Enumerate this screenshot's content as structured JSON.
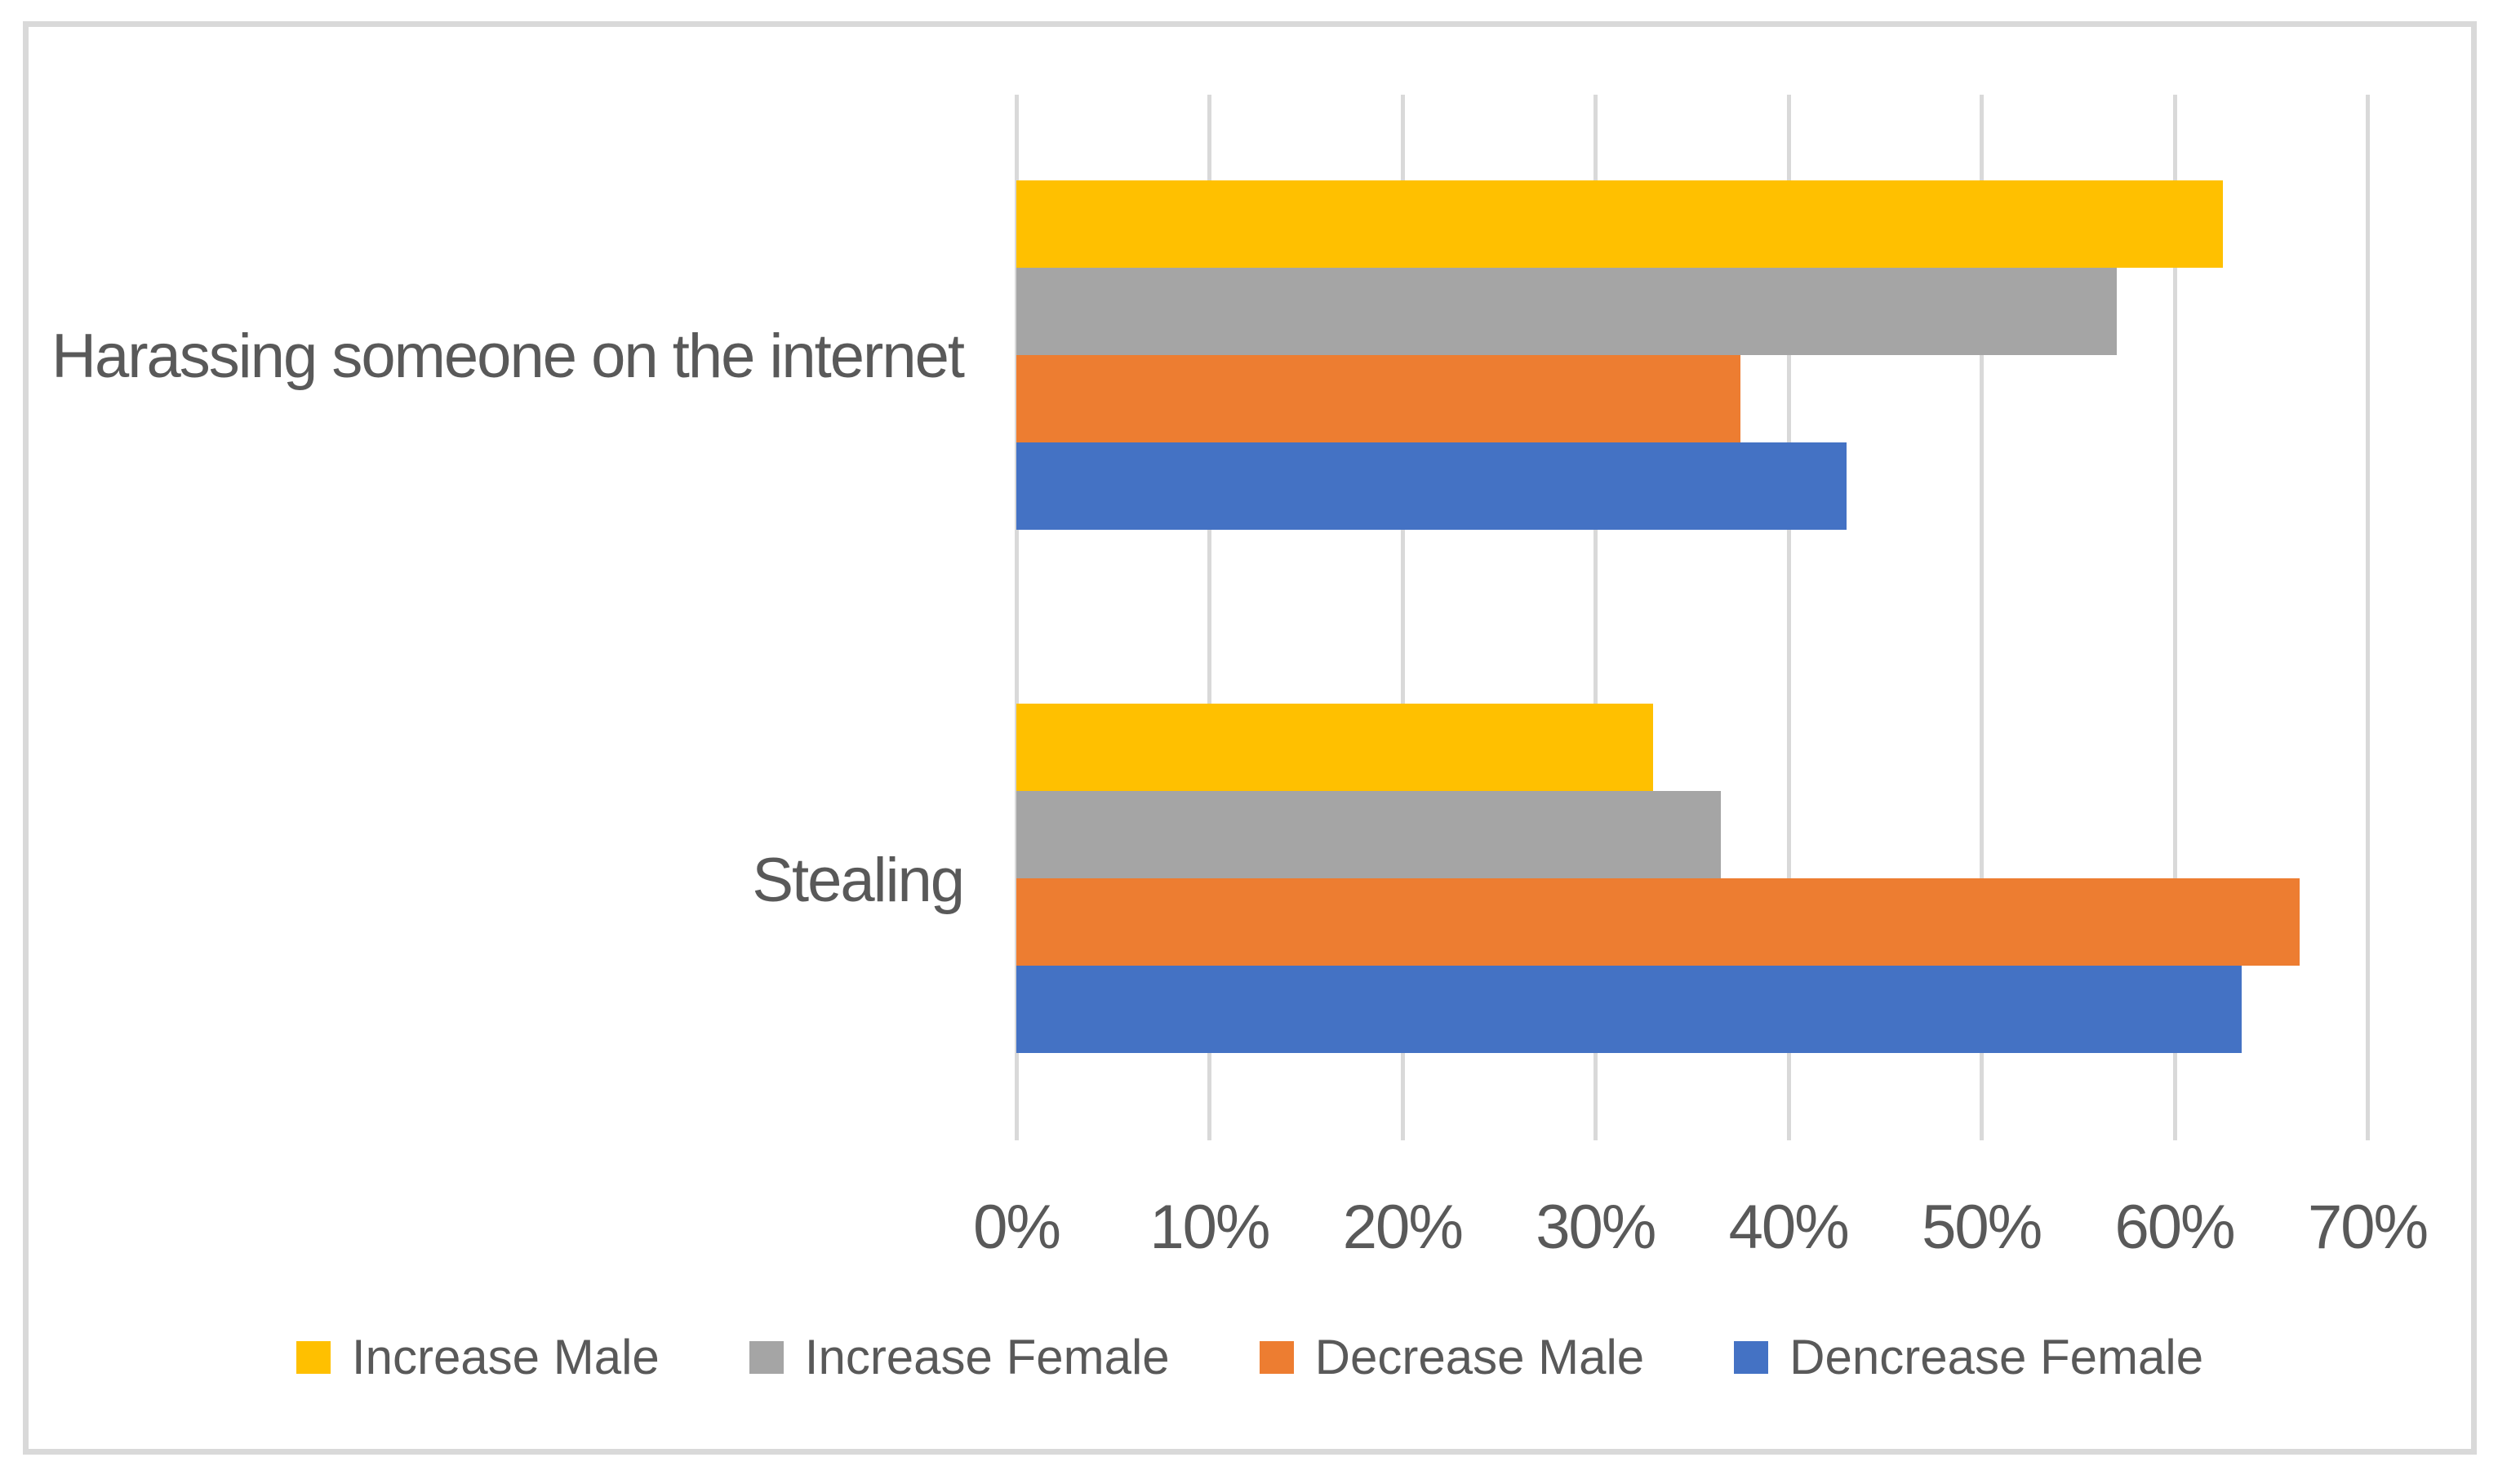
{
  "chart_data": {
    "type": "bar",
    "orientation": "horizontal",
    "title": "",
    "categories": [
      "Harassing someone on the internet",
      "Stealing"
    ],
    "series": [
      {
        "name": "Increase Male",
        "color": "#FFC000",
        "values": [
          62.5,
          33.0
        ]
      },
      {
        "name": "Increase Female",
        "color": "#A5A5A5",
        "values": [
          57.0,
          36.5
        ]
      },
      {
        "name": "Decrease Male",
        "color": "#ED7D31",
        "values": [
          37.5,
          66.5
        ]
      },
      {
        "name": "Dencrease Female",
        "color": "#4472C4",
        "values": [
          43.0,
          63.5
        ]
      }
    ],
    "x_axis": {
      "min": 0,
      "max": 70,
      "tick_labels": [
        "0%",
        "10%",
        "20%",
        "30%",
        "40%",
        "50%",
        "60%",
        "70%"
      ]
    },
    "grid": "vertical-gridlines-on",
    "legend_position": "bottom",
    "colors": {
      "gridline": "#D9D9D9",
      "frame_border": "#D9D9D9",
      "text": "#595959",
      "background": "#FFFFFF"
    }
  }
}
